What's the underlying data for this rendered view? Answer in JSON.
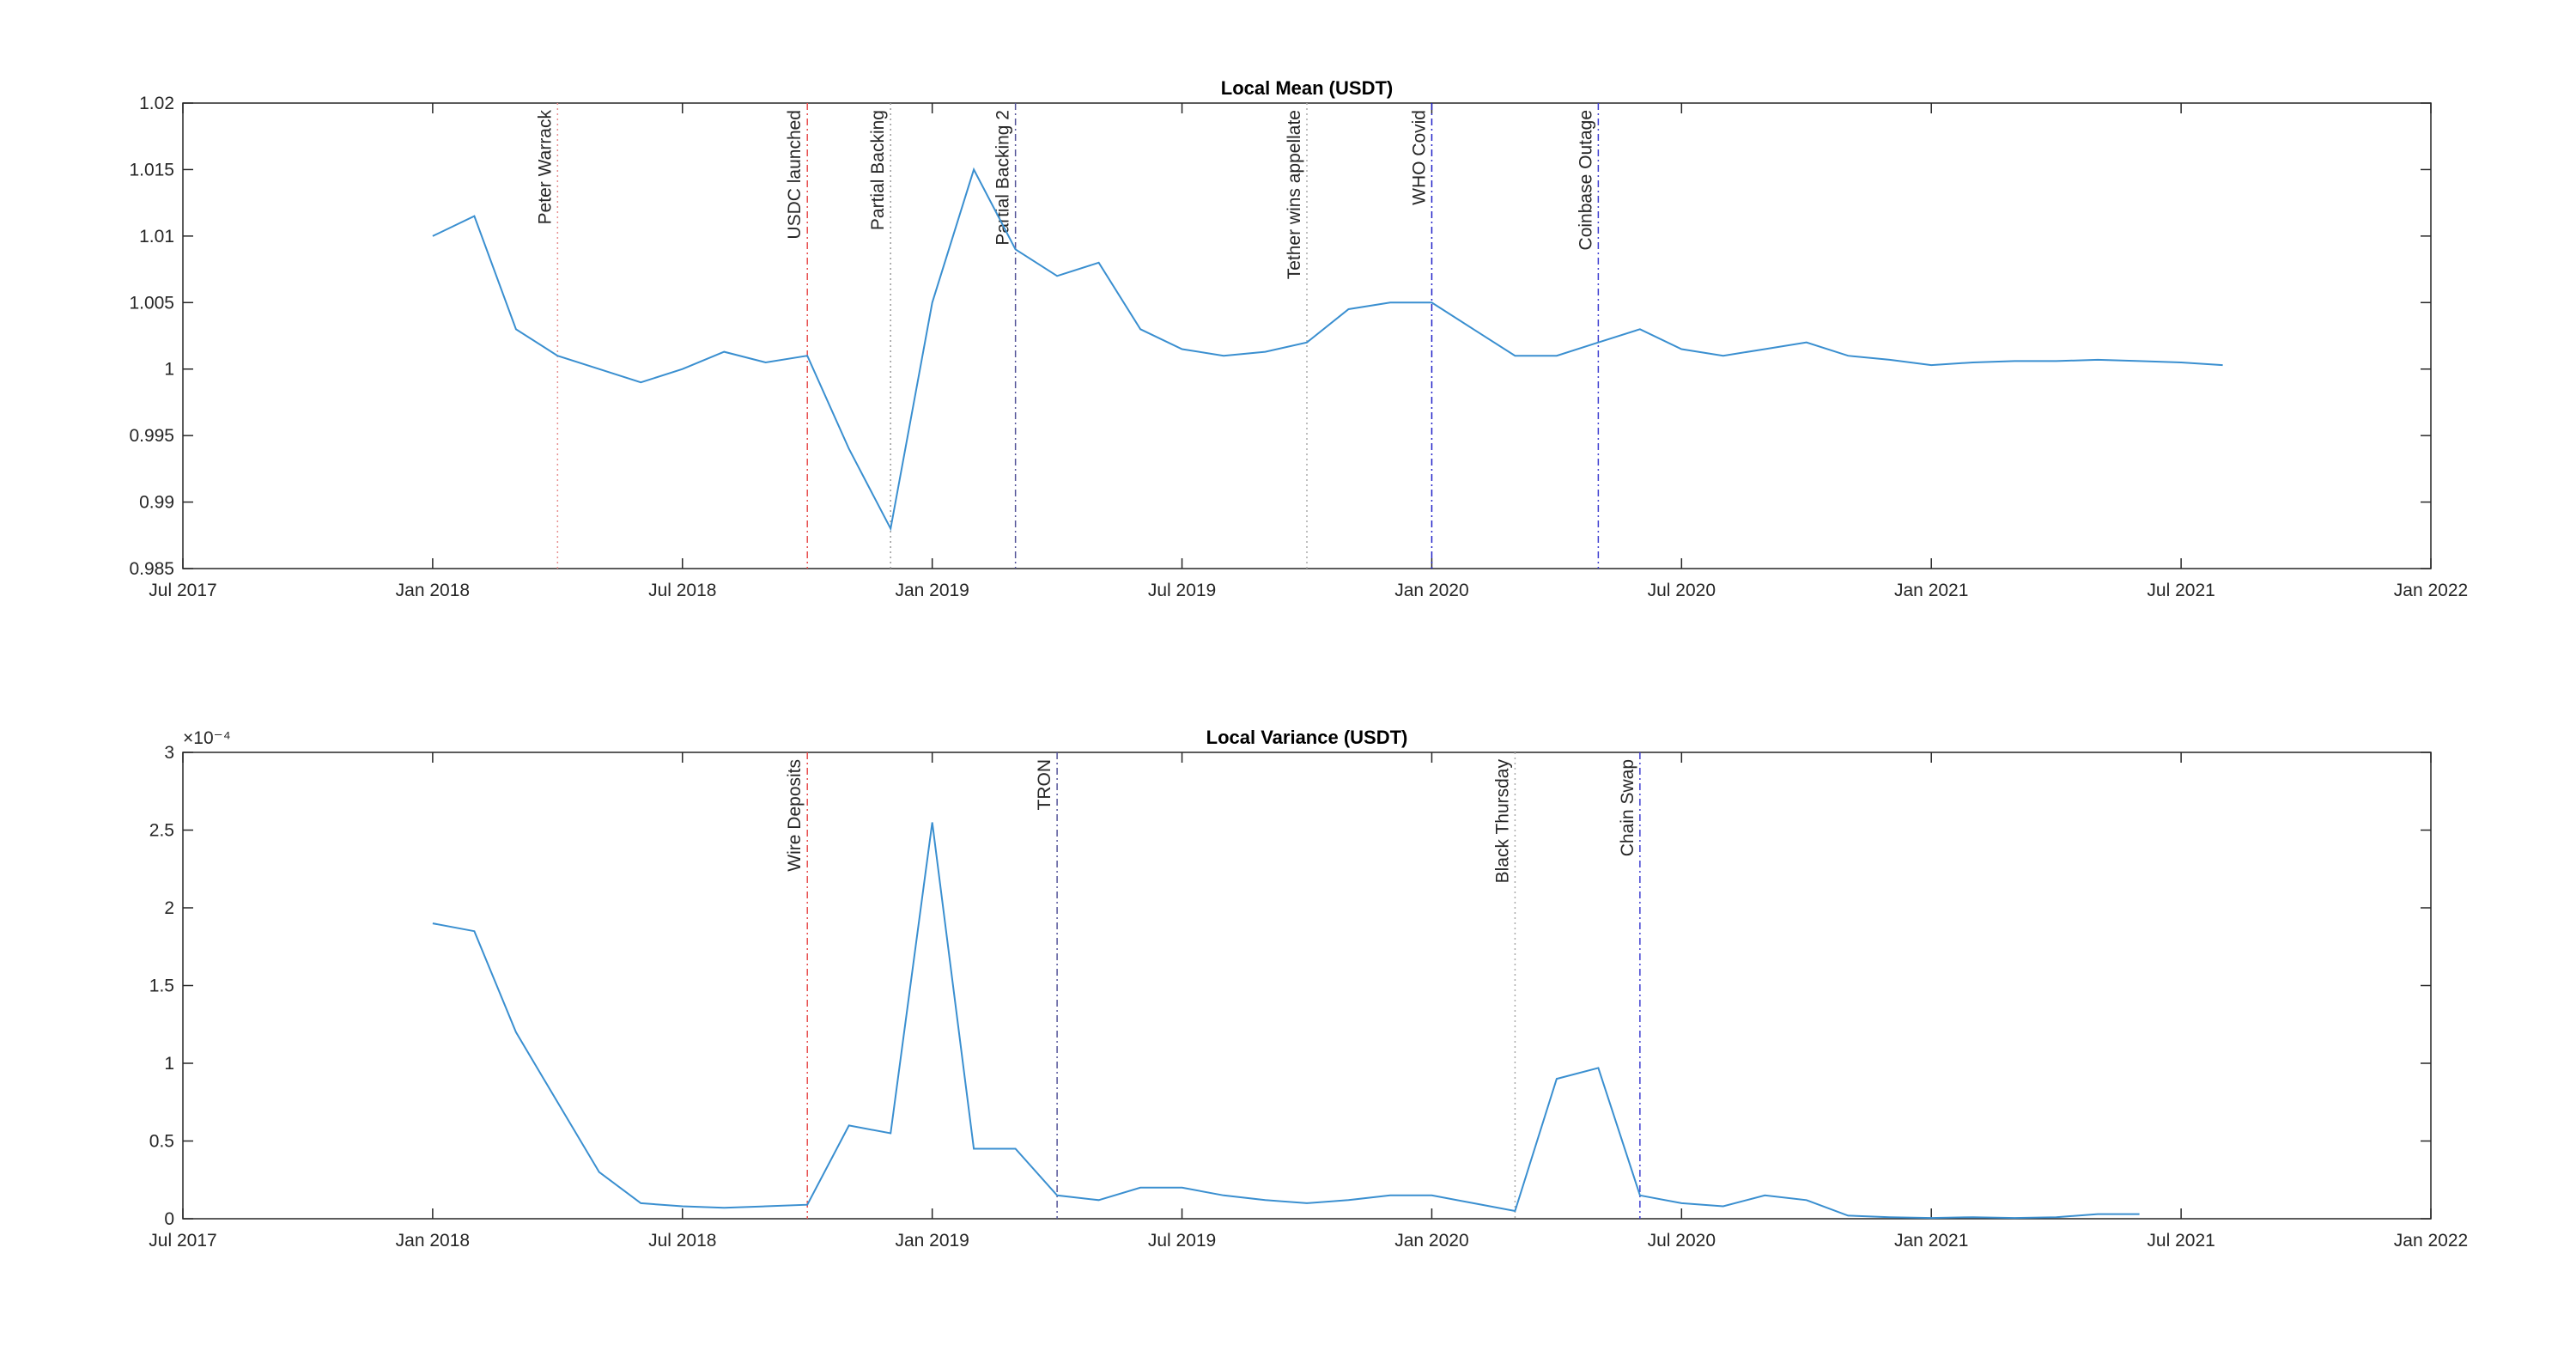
{
  "chart_data": [
    {
      "type": "line",
      "title": "Local Mean (USDT)",
      "xlim": [
        "2017-07",
        "2022-01"
      ],
      "xticks": [
        {
          "value": "2017-07",
          "label": "Jul 2017"
        },
        {
          "value": "2018-01",
          "label": "Jan 2018"
        },
        {
          "value": "2018-07",
          "label": "Jul 2018"
        },
        {
          "value": "2019-01",
          "label": "Jan 2019"
        },
        {
          "value": "2019-07",
          "label": "Jul 2019"
        },
        {
          "value": "2020-01",
          "label": "Jan 2020"
        },
        {
          "value": "2020-07",
          "label": "Jul 2020"
        },
        {
          "value": "2021-01",
          "label": "Jan 2021"
        },
        {
          "value": "2021-07",
          "label": "Jul 2021"
        },
        {
          "value": "2022-01",
          "label": "Jan 2022"
        }
      ],
      "ylim": [
        0.985,
        1.02
      ],
      "yticks": [
        0.985,
        0.99,
        0.995,
        1,
        1.005,
        1.01,
        1.015,
        1.02
      ],
      "x": [
        "2018-01",
        "2018-02",
        "2018-03",
        "2018-04",
        "2018-05",
        "2018-06",
        "2018-07",
        "2018-08",
        "2018-09",
        "2018-10",
        "2018-11",
        "2018-12",
        "2019-01",
        "2019-02",
        "2019-03",
        "2019-04",
        "2019-05",
        "2019-06",
        "2019-07",
        "2019-08",
        "2019-09",
        "2019-10",
        "2019-11",
        "2019-12",
        "2020-01",
        "2020-02",
        "2020-03",
        "2020-04",
        "2020-05",
        "2020-06",
        "2020-07",
        "2020-08",
        "2020-09",
        "2020-10",
        "2020-11",
        "2020-12",
        "2021-01",
        "2021-02",
        "2021-03",
        "2021-04",
        "2021-05",
        "2021-06",
        "2021-07",
        "2021-08"
      ],
      "series": [
        {
          "name": "Local Mean",
          "color": "#3a8fd0",
          "values": [
            1.01,
            1.0115,
            1.003,
            1.001,
            1,
            0.999,
            1,
            1.0013,
            1.0005,
            1.001,
            0.994,
            0.988,
            1.005,
            1.015,
            1.009,
            1.007,
            1.008,
            1.003,
            1.0015,
            1.001,
            1.0013,
            1.002,
            1.0045,
            1.005,
            1.005,
            1.003,
            1.001,
            1.001,
            1.002,
            1.003,
            1.0015,
            1.001,
            1.0015,
            1.002,
            1.001,
            1.0007,
            1.0003,
            1.0005,
            1.0006,
            1.0006,
            1.0007,
            1.0006,
            1.0005,
            1.0003
          ]
        }
      ],
      "annotations": [
        {
          "label": "Peter Warrack",
          "x": "2018-04",
          "color": "#e8242b",
          "line_color": "#e89090",
          "dash": "2,4"
        },
        {
          "label": "USDC launched",
          "x": "2018-10",
          "color": "#e8242b",
          "line_color": "#e85050",
          "dash": "8,4,2,4"
        },
        {
          "label": "Partial Backing",
          "x": "2018-12",
          "color": "#000000",
          "line_color": "#999999",
          "dash": "2,4"
        },
        {
          "label": "Partial Backing 2",
          "x": "2019-03",
          "color": "#000000",
          "line_color": "#555599",
          "dash": "8,4,2,4"
        },
        {
          "label": "Tether wins appellate",
          "x": "2019-10",
          "color": "#1010c8",
          "line_color": "#aaaaaa",
          "dash": "2,4"
        },
        {
          "label": "WHO Covid",
          "x": "2020-01",
          "color": "#1010c8",
          "line_color": "#2020c8",
          "dash": "8,4,2,4"
        },
        {
          "label": "Coinbase Outage",
          "x": "2020-05",
          "color": "#1010c8",
          "line_color": "#4040d0",
          "dash": "8,4,2,4"
        }
      ]
    },
    {
      "type": "line",
      "title": "Local Variance (USDT)",
      "y_exponent_label": "×10⁻⁴",
      "xlim": [
        "2017-07",
        "2022-01"
      ],
      "xticks": [
        {
          "value": "2017-07",
          "label": "Jul 2017"
        },
        {
          "value": "2018-01",
          "label": "Jan 2018"
        },
        {
          "value": "2018-07",
          "label": "Jul 2018"
        },
        {
          "value": "2019-01",
          "label": "Jan 2019"
        },
        {
          "value": "2019-07",
          "label": "Jul 2019"
        },
        {
          "value": "2020-01",
          "label": "Jan 2020"
        },
        {
          "value": "2020-07",
          "label": "Jul 2020"
        },
        {
          "value": "2021-01",
          "label": "Jan 2021"
        },
        {
          "value": "2021-07",
          "label": "Jul 2021"
        },
        {
          "value": "2022-01",
          "label": "Jan 2022"
        }
      ],
      "ylim": [
        0,
        3
      ],
      "yticks": [
        0,
        0.5,
        1,
        1.5,
        2,
        2.5,
        3
      ],
      "x": [
        "2018-01",
        "2018-02",
        "2018-03",
        "2018-04",
        "2018-05",
        "2018-06",
        "2018-07",
        "2018-08",
        "2018-09",
        "2018-10",
        "2018-11",
        "2018-12",
        "2019-01",
        "2019-02",
        "2019-03",
        "2019-04",
        "2019-05",
        "2019-06",
        "2019-07",
        "2019-08",
        "2019-09",
        "2019-10",
        "2019-11",
        "2019-12",
        "2020-01",
        "2020-02",
        "2020-03",
        "2020-04",
        "2020-05",
        "2020-06",
        "2020-07",
        "2020-08",
        "2020-09",
        "2020-10",
        "2020-11",
        "2020-12",
        "2021-01",
        "2021-02",
        "2021-03",
        "2021-04",
        "2021-05",
        "2021-06"
      ],
      "series": [
        {
          "name": "Local Variance",
          "color": "#3a8fd0",
          "values": [
            1.9,
            1.85,
            1.2,
            0.75,
            0.3,
            0.1,
            0.08,
            0.07,
            0.08,
            0.09,
            0.6,
            0.55,
            2.55,
            0.45,
            0.45,
            0.15,
            0.12,
            0.2,
            0.2,
            0.15,
            0.12,
            0.1,
            0.12,
            0.15,
            0.15,
            0.1,
            0.05,
            0.9,
            0.97,
            0.15,
            0.1,
            0.08,
            0.15,
            0.12,
            0.02,
            0.01,
            0.005,
            0.01,
            0.005,
            0.01,
            0.03,
            0.03
          ]
        }
      ],
      "annotations": [
        {
          "label": "Wire Deposits",
          "x": "2018-10",
          "color": "#e8242b",
          "line_color": "#e85050",
          "dash": "8,4,2,4"
        },
        {
          "label": "TRON",
          "x": "2019-04",
          "color": "#000000",
          "line_color": "#555599",
          "dash": "8,4,2,4"
        },
        {
          "label": "Black Thursday",
          "x": "2020-03",
          "color": "#1010c8",
          "line_color": "#aaaaaa",
          "dash": "2,4"
        },
        {
          "label": "Chain Swap",
          "x": "2020-06",
          "color": "#1010c8",
          "line_color": "#4040d0",
          "dash": "8,4,2,4"
        }
      ]
    }
  ]
}
